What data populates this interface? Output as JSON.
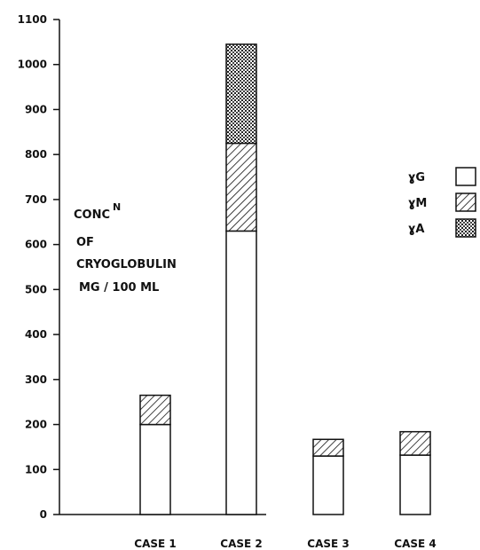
{
  "chart_data": {
    "type": "bar",
    "stacked": true,
    "categories": [
      "CASE 1",
      "CASE 2",
      "CASE 3",
      "CASE 4"
    ],
    "series": [
      {
        "name": "ɣG",
        "values": [
          200,
          630,
          130,
          132
        ],
        "pattern": "none",
        "fill": "#ffffff"
      },
      {
        "name": "ɣM",
        "values": [
          65,
          195,
          37,
          52
        ],
        "pattern": "diagonal-hatch",
        "fill": "#ffffff"
      },
      {
        "name": "ɣA",
        "values": [
          0,
          220,
          0,
          0
        ],
        "pattern": "crosshatch-dots",
        "fill": "#ffffff"
      }
    ],
    "y_ticks": [
      "0",
      "100",
      "200",
      "300",
      "400",
      "500",
      "600",
      "700",
      "800",
      "900",
      "1000",
      "1100"
    ],
    "ylim": [
      0,
      1100
    ],
    "ylabel_lines": [
      "CONC",
      "OF",
      "CRYOGLOBULIN",
      "MG / 100 ML"
    ],
    "ylabel_superscript": "N",
    "legend_position": "right",
    "grid": false,
    "ink_color": "#111111"
  }
}
